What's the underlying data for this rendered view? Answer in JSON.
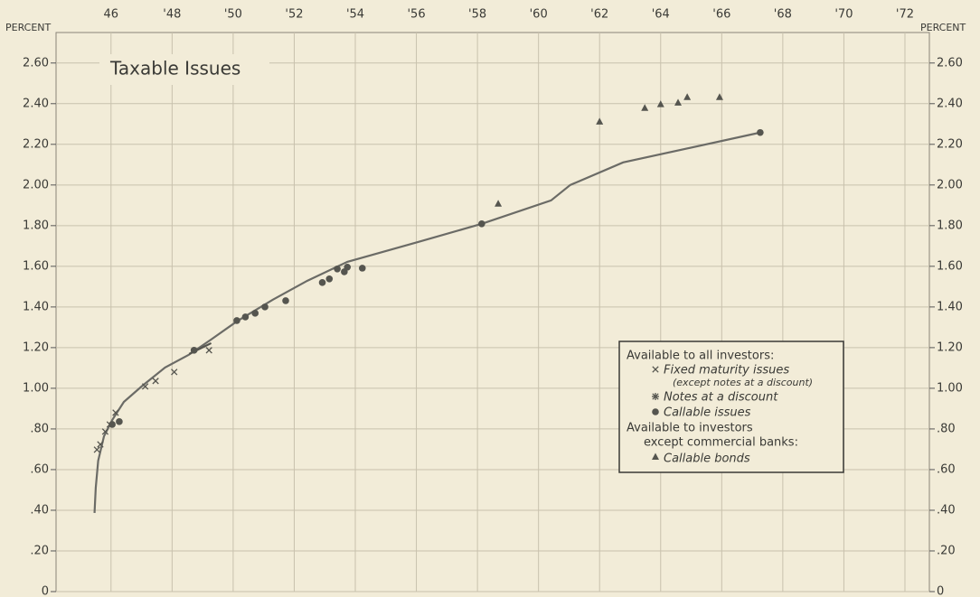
{
  "chart_data": {
    "type": "scatter",
    "title": "Taxable Issues",
    "y_label": "PERCENT",
    "xlim": [
      1944.2,
      1972.8
    ],
    "ylim": [
      0,
      2.75
    ],
    "xticks": [
      {
        "value": 1946,
        "label": "46"
      },
      {
        "value": 1948,
        "label": "'48"
      },
      {
        "value": 1950,
        "label": "'50"
      },
      {
        "value": 1952,
        "label": "'52"
      },
      {
        "value": 1954,
        "label": "'54"
      },
      {
        "value": 1956,
        "label": "'56"
      },
      {
        "value": 1958,
        "label": "'58"
      },
      {
        "value": 1960,
        "label": "'60"
      },
      {
        "value": 1962,
        "label": "'62"
      },
      {
        "value": 1964,
        "label": "'64"
      },
      {
        "value": 1966,
        "label": "'66"
      },
      {
        "value": 1968,
        "label": "'68"
      },
      {
        "value": 1970,
        "label": "'70"
      },
      {
        "value": 1972,
        "label": "'72"
      }
    ],
    "yticks": [
      0,
      {
        "value": 0.2,
        "label": ".20"
      },
      {
        "value": 0.4,
        "label": ".40"
      },
      {
        "value": 0.6,
        "label": ".60"
      },
      {
        "value": 0.8,
        "label": ".80"
      },
      {
        "value": 1,
        "label": "1.00"
      },
      {
        "value": 1.2,
        "label": "1.20"
      },
      {
        "value": 1.4,
        "label": "1.40"
      },
      {
        "value": 1.6,
        "label": "1.60"
      },
      {
        "value": 1.8,
        "label": "1.80"
      },
      {
        "value": 2,
        "label": "2.00"
      },
      {
        "value": 2.2,
        "label": "2.20"
      },
      {
        "value": 2.4,
        "label": "2.40"
      },
      {
        "value": 2.6,
        "label": "2.60"
      }
    ],
    "grid": true,
    "legend_headings": [
      "Available to all investors:",
      "Available to investors",
      "except commercial banks:"
    ],
    "curves": [
      {
        "color": "#6b6b66",
        "x": [
          1945.46,
          1945.5,
          1945.58,
          1945.77,
          1946.04,
          1946.42,
          1947.0,
          1947.77,
          1948.54,
          1949.28,
          1950.12,
          1951.3,
          1952.43,
          1953.74,
          1956.07,
          1958.14,
          1960.41,
          1961.04,
          1962.77,
          1967.26
        ],
        "values": [
          0.387,
          0.511,
          0.644,
          0.764,
          0.844,
          0.933,
          1.009,
          1.102,
          1.164,
          1.24,
          1.329,
          1.436,
          1.529,
          1.622,
          1.72,
          1.809,
          1.924,
          2.0,
          2.111,
          2.258
        ]
      },
      {
        "color": "#55554f",
        "x": [
          1948.56,
          1949.28
        ],
        "values": [
          1.169,
          1.222
        ]
      }
    ],
    "series": [
      {
        "name": "Fixed maturity issues",
        "note": "(except notes at a discount)",
        "marker": "x",
        "color": "#55554f",
        "x": [
          1945.54,
          1945.65,
          1945.81,
          1945.96,
          1946.15,
          1947.12,
          1947.46,
          1948.07,
          1949.21
        ],
        "values": [
          0.698,
          0.724,
          0.787,
          0.822,
          0.88,
          1.009,
          1.036,
          1.08,
          1.187
        ]
      },
      {
        "name": "Notes at a discount",
        "marker": "star",
        "color": "#55554f",
        "x": [],
        "values": []
      },
      {
        "name": "Callable issues",
        "marker": "circle",
        "color": "#55554f",
        "x": [
          1946.04,
          1946.27,
          1948.72,
          1950.12,
          1950.4,
          1950.72,
          1951.04,
          1951.72,
          1952.92,
          1953.15,
          1953.41,
          1953.64,
          1953.74,
          1954.23,
          1958.14,
          1967.26
        ],
        "values": [
          0.822,
          0.836,
          1.187,
          1.333,
          1.351,
          1.369,
          1.4,
          1.431,
          1.52,
          1.538,
          1.587,
          1.573,
          1.596,
          1.591,
          1.809,
          2.258
        ]
      },
      {
        "name": "Callable bonds",
        "marker": "triangle",
        "color": "#55554f",
        "x": [
          1958.68,
          1962.0,
          1963.48,
          1964.0,
          1964.57,
          1964.87,
          1965.93
        ],
        "values": [
          1.907,
          2.311,
          2.378,
          2.396,
          2.404,
          2.431,
          2.431
        ]
      }
    ]
  }
}
